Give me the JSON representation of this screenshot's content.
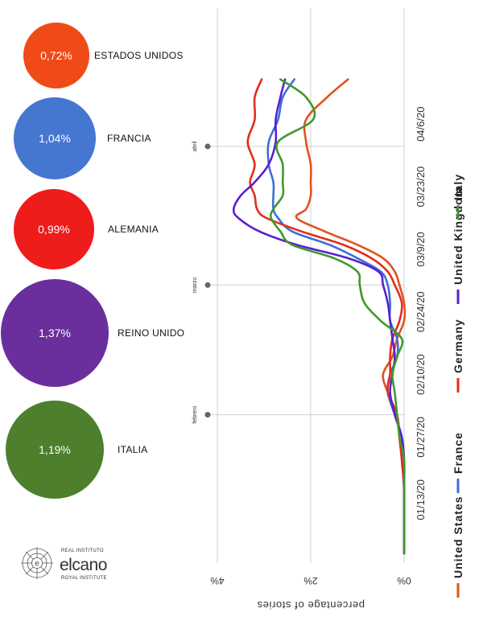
{
  "bubbles": [
    {
      "value": "0,72%",
      "label": "ESTADOS UNIDOS",
      "color": "#f04a18"
    },
    {
      "value": "1,04%",
      "label": "FRANCIA",
      "color": "#4577d0"
    },
    {
      "value": "0,99%",
      "label": "ALEMANIA",
      "color": "#ef1c1c"
    },
    {
      "value": "1,37%",
      "label": "REINO UNIDO",
      "color": "#6a2f9c"
    },
    {
      "value": "1,19%",
      "label": "ITALIA",
      "color": "#4d7f2c"
    }
  ],
  "logo": {
    "line1": "REAL INSTITUTO",
    "name": "elcano",
    "line3": "ROYAL INSTITUTE"
  },
  "chart_data": {
    "type": "line",
    "orientation": "rotated-90",
    "ylabel": "percentage of stories",
    "y_ticks": [
      "0%",
      "2%",
      "4%"
    ],
    "ylim": [
      0,
      4.4
    ],
    "x_ticks": [
      {
        "label": "01/13/20",
        "date": "2020-01-13"
      },
      {
        "label": "01/27/20",
        "date": "2020-01-27"
      },
      {
        "label": "02/10/20",
        "date": "2020-02-10"
      },
      {
        "label": "02/24/20",
        "date": "2020-02-24"
      },
      {
        "label": "03/9/20",
        "date": "2020-03-09"
      },
      {
        "label": "03/23/20",
        "date": "2020-03-23"
      },
      {
        "label": "04/6/20",
        "date": "2020-04-06"
      }
    ],
    "month_markers": [
      {
        "label": "febrero",
        "date": "2020-02-01"
      },
      {
        "label": "marzo",
        "date": "2020-03-01"
      },
      {
        "label": "abril",
        "date": "2020-04-01"
      }
    ],
    "series": [
      {
        "name": "United States",
        "color": "#e0531e",
        "points": [
          [
            "2020-01-01",
            0.0
          ],
          [
            "2020-01-15",
            0.0
          ],
          [
            "2020-01-22",
            0.05
          ],
          [
            "2020-01-27",
            0.1
          ],
          [
            "2020-02-01",
            0.15
          ],
          [
            "2020-02-06",
            0.35
          ],
          [
            "2020-02-10",
            0.45
          ],
          [
            "2020-02-14",
            0.25
          ],
          [
            "2020-02-18",
            0.15
          ],
          [
            "2020-02-22",
            0.0
          ],
          [
            "2020-02-26",
            0.0
          ],
          [
            "2020-03-01",
            0.1
          ],
          [
            "2020-03-04",
            0.2
          ],
          [
            "2020-03-07",
            0.45
          ],
          [
            "2020-03-10",
            1.0
          ],
          [
            "2020-03-13",
            1.7
          ],
          [
            "2020-03-16",
            2.3
          ],
          [
            "2020-03-18",
            2.1
          ],
          [
            "2020-03-21",
            2.0
          ],
          [
            "2020-03-24",
            2.0
          ],
          [
            "2020-03-28",
            2.0
          ],
          [
            "2020-04-02",
            2.1
          ],
          [
            "2020-04-07",
            2.1
          ],
          [
            "2020-04-12",
            1.65
          ],
          [
            "2020-04-16",
            1.2
          ]
        ]
      },
      {
        "name": "France",
        "color": "#3c6fd6",
        "points": [
          [
            "2020-01-01",
            0.0
          ],
          [
            "2020-01-15",
            0.0
          ],
          [
            "2020-01-22",
            0.05
          ],
          [
            "2020-01-27",
            0.05
          ],
          [
            "2020-02-01",
            0.2
          ],
          [
            "2020-02-06",
            0.35
          ],
          [
            "2020-02-10",
            0.3
          ],
          [
            "2020-02-14",
            0.15
          ],
          [
            "2020-02-18",
            0.15
          ],
          [
            "2020-02-22",
            0.3
          ],
          [
            "2020-02-26",
            0.3
          ],
          [
            "2020-03-01",
            0.35
          ],
          [
            "2020-03-04",
            0.5
          ],
          [
            "2020-03-07",
            1.0
          ],
          [
            "2020-03-10",
            1.6
          ],
          [
            "2020-03-13",
            2.4
          ],
          [
            "2020-03-16",
            2.7
          ],
          [
            "2020-03-18",
            2.8
          ],
          [
            "2020-03-21",
            2.8
          ],
          [
            "2020-03-24",
            2.8
          ],
          [
            "2020-03-28",
            2.9
          ],
          [
            "2020-04-02",
            2.9
          ],
          [
            "2020-04-07",
            2.7
          ],
          [
            "2020-04-12",
            2.6
          ],
          [
            "2020-04-16",
            2.35
          ]
        ]
      },
      {
        "name": "Germany",
        "color": "#e42c1c",
        "points": [
          [
            "2020-01-01",
            0.0
          ],
          [
            "2020-01-15",
            0.0
          ],
          [
            "2020-01-22",
            0.05
          ],
          [
            "2020-01-27",
            0.1
          ],
          [
            "2020-02-01",
            0.15
          ],
          [
            "2020-02-06",
            0.35
          ],
          [
            "2020-02-10",
            0.3
          ],
          [
            "2020-02-14",
            0.3
          ],
          [
            "2020-02-18",
            0.25
          ],
          [
            "2020-02-22",
            0.1
          ],
          [
            "2020-02-26",
            0.05
          ],
          [
            "2020-03-01",
            0.2
          ],
          [
            "2020-03-04",
            0.35
          ],
          [
            "2020-03-07",
            0.7
          ],
          [
            "2020-03-10",
            1.3
          ],
          [
            "2020-03-13",
            2.2
          ],
          [
            "2020-03-16",
            2.95
          ],
          [
            "2020-03-18",
            3.15
          ],
          [
            "2020-03-21",
            3.2
          ],
          [
            "2020-03-24",
            3.3
          ],
          [
            "2020-03-28",
            3.2
          ],
          [
            "2020-04-02",
            3.35
          ],
          [
            "2020-04-07",
            3.2
          ],
          [
            "2020-04-12",
            3.2
          ],
          [
            "2020-04-16",
            3.05
          ]
        ]
      },
      {
        "name": "United Kingdom",
        "color": "#5a1fd0",
        "points": [
          [
            "2020-01-01",
            0.0
          ],
          [
            "2020-01-15",
            0.0
          ],
          [
            "2020-01-22",
            0.0
          ],
          [
            "2020-01-27",
            0.05
          ],
          [
            "2020-02-01",
            0.2
          ],
          [
            "2020-02-06",
            0.3
          ],
          [
            "2020-02-10",
            0.25
          ],
          [
            "2020-02-14",
            0.2
          ],
          [
            "2020-02-18",
            0.25
          ],
          [
            "2020-02-22",
            0.3
          ],
          [
            "2020-02-26",
            0.35
          ],
          [
            "2020-03-01",
            0.45
          ],
          [
            "2020-03-04",
            0.55
          ],
          [
            "2020-03-07",
            1.2
          ],
          [
            "2020-03-10",
            2.3
          ],
          [
            "2020-03-13",
            3.1
          ],
          [
            "2020-03-16",
            3.55
          ],
          [
            "2020-03-18",
            3.65
          ],
          [
            "2020-03-21",
            3.5
          ],
          [
            "2020-03-24",
            3.2
          ],
          [
            "2020-03-28",
            2.9
          ],
          [
            "2020-04-02",
            2.75
          ],
          [
            "2020-04-07",
            2.75
          ],
          [
            "2020-04-12",
            2.65
          ],
          [
            "2020-04-16",
            2.55
          ]
        ]
      },
      {
        "name": "Italy",
        "color": "#3f9a2a",
        "points": [
          [
            "2020-01-01",
            0.0
          ],
          [
            "2020-01-15",
            0.0
          ],
          [
            "2020-01-22",
            0.0
          ],
          [
            "2020-01-27",
            0.1
          ],
          [
            "2020-02-01",
            0.15
          ],
          [
            "2020-02-06",
            0.2
          ],
          [
            "2020-02-10",
            0.25
          ],
          [
            "2020-02-14",
            0.15
          ],
          [
            "2020-02-18",
            0.05
          ],
          [
            "2020-02-22",
            0.5
          ],
          [
            "2020-02-26",
            0.85
          ],
          [
            "2020-03-01",
            0.95
          ],
          [
            "2020-03-04",
            1.0
          ],
          [
            "2020-03-07",
            1.5
          ],
          [
            "2020-03-10",
            2.4
          ],
          [
            "2020-03-13",
            2.65
          ],
          [
            "2020-03-16",
            2.85
          ],
          [
            "2020-03-18",
            2.8
          ],
          [
            "2020-03-21",
            2.6
          ],
          [
            "2020-03-24",
            2.6
          ],
          [
            "2020-03-28",
            2.6
          ],
          [
            "2020-04-02",
            2.7
          ],
          [
            "2020-04-07",
            1.95
          ],
          [
            "2020-04-12",
            2.1
          ],
          [
            "2020-04-16",
            2.65
          ]
        ]
      }
    ],
    "colors": {
      "grid": "#d0d0d0",
      "axis": "#bdd0ea",
      "marker": "#666666"
    }
  }
}
